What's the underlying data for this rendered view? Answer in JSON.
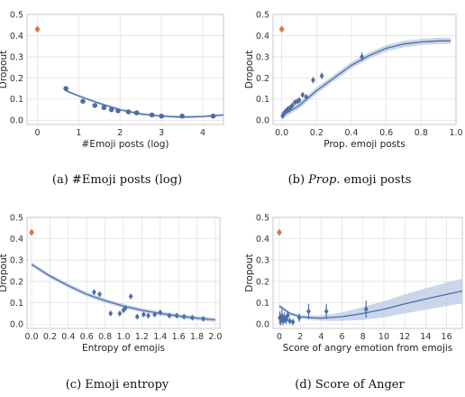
{
  "colors": {
    "points": "#4c6ea5",
    "fit": "#4c6ea5",
    "band": "#b9c8e3",
    "zero_marker": "#d9784f",
    "grid": "#e3e3e3"
  },
  "chart_data": [
    {
      "type": "scatter",
      "caption": "(a)  #Emoji posts (log)",
      "xlabel": "#Emoji posts (log)",
      "ylabel": "Dropout",
      "xlim": [
        -0.25,
        4.5
      ],
      "ylim": [
        -0.02,
        0.5
      ],
      "xticks": [
        0,
        1,
        2,
        3,
        4
      ],
      "yticks": [
        0.0,
        0.1,
        0.2,
        0.3,
        0.4,
        0.5
      ],
      "grid": true,
      "special_point": {
        "x": 0,
        "y": 0.43
      },
      "points": [
        {
          "x": 0.69,
          "y": 0.15
        },
        {
          "x": 1.1,
          "y": 0.09
        },
        {
          "x": 1.39,
          "y": 0.07
        },
        {
          "x": 1.61,
          "y": 0.06
        },
        {
          "x": 1.79,
          "y": 0.05
        },
        {
          "x": 1.95,
          "y": 0.045
        },
        {
          "x": 2.2,
          "y": 0.04
        },
        {
          "x": 2.4,
          "y": 0.035
        },
        {
          "x": 2.77,
          "y": 0.025
        },
        {
          "x": 3.0,
          "y": 0.02
        },
        {
          "x": 3.5,
          "y": 0.02
        },
        {
          "x": 4.25,
          "y": 0.02
        }
      ],
      "fit": [
        {
          "x": 0.69,
          "y": 0.14
        },
        {
          "x": 1.0,
          "y": 0.115
        },
        {
          "x": 1.5,
          "y": 0.08
        },
        {
          "x": 2.0,
          "y": 0.05
        },
        {
          "x": 2.5,
          "y": 0.03
        },
        {
          "x": 3.0,
          "y": 0.02
        },
        {
          "x": 3.5,
          "y": 0.015
        },
        {
          "x": 4.0,
          "y": 0.018
        },
        {
          "x": 4.5,
          "y": 0.025
        }
      ],
      "band_width": 0.006
    },
    {
      "type": "scatter",
      "caption": "(b)  Prop. emoji posts",
      "caption_prefix": "(b)  ",
      "caption_italic": "Prop.",
      "caption_rest": " emoji posts",
      "xlabel": "Prop. emoji posts",
      "ylabel": "Dropout",
      "xlim": [
        -0.05,
        1.0
      ],
      "ylim": [
        -0.02,
        0.5
      ],
      "xticks": [
        0.0,
        0.2,
        0.4,
        0.6,
        0.8,
        1.0
      ],
      "yticks": [
        0.0,
        0.1,
        0.2,
        0.3,
        0.4,
        0.5
      ],
      "grid": true,
      "special_point": {
        "x": 0,
        "y": 0.43
      },
      "points": [
        {
          "x": 0.005,
          "y": 0.02,
          "err": 0.008
        },
        {
          "x": 0.01,
          "y": 0.03,
          "err": 0.008
        },
        {
          "x": 0.015,
          "y": 0.035,
          "err": 0.008
        },
        {
          "x": 0.02,
          "y": 0.04,
          "err": 0.008
        },
        {
          "x": 0.03,
          "y": 0.05,
          "err": 0.008
        },
        {
          "x": 0.04,
          "y": 0.055,
          "err": 0.008
        },
        {
          "x": 0.05,
          "y": 0.06,
          "err": 0.008
        },
        {
          "x": 0.06,
          "y": 0.07,
          "err": 0.008
        },
        {
          "x": 0.075,
          "y": 0.085,
          "err": 0.008
        },
        {
          "x": 0.09,
          "y": 0.09,
          "err": 0.008
        },
        {
          "x": 0.1,
          "y": 0.095,
          "err": 0.008
        },
        {
          "x": 0.12,
          "y": 0.12,
          "err": 0.01
        },
        {
          "x": 0.14,
          "y": 0.11,
          "err": 0.01
        },
        {
          "x": 0.18,
          "y": 0.19,
          "err": 0.015
        },
        {
          "x": 0.23,
          "y": 0.21,
          "err": 0.015
        },
        {
          "x": 0.46,
          "y": 0.3,
          "err": 0.02
        }
      ],
      "fit": [
        {
          "x": 0.0,
          "y": 0.02
        },
        {
          "x": 0.1,
          "y": 0.07
        },
        {
          "x": 0.2,
          "y": 0.14
        },
        {
          "x": 0.3,
          "y": 0.2
        },
        {
          "x": 0.4,
          "y": 0.26
        },
        {
          "x": 0.5,
          "y": 0.305
        },
        {
          "x": 0.6,
          "y": 0.34
        },
        {
          "x": 0.7,
          "y": 0.36
        },
        {
          "x": 0.8,
          "y": 0.37
        },
        {
          "x": 0.9,
          "y": 0.375
        },
        {
          "x": 0.97,
          "y": 0.375
        }
      ],
      "band_width": 0.015
    },
    {
      "type": "scatter",
      "caption": "(c)  Emoji entropy",
      "xlabel": "Entropy of emojis",
      "ylabel": "Dropout",
      "xlim": [
        -0.05,
        2.05
      ],
      "ylim": [
        -0.02,
        0.5
      ],
      "xticks": [
        0.0,
        0.2,
        0.4,
        0.6,
        0.8,
        1.0,
        1.2,
        1.4,
        1.6,
        1.8,
        2.0
      ],
      "xticklabels": [
        "0.0",
        "0.2",
        "0.4",
        "0.6",
        "0.8",
        "1.0",
        "1.2",
        "1.4",
        "1.6",
        "1.8",
        "2.0"
      ],
      "yticks": [
        0.0,
        0.1,
        0.2,
        0.3,
        0.4,
        0.5
      ],
      "grid": true,
      "special_point": {
        "x": 0,
        "y": 0.43
      },
      "points": [
        {
          "x": 0.68,
          "y": 0.15,
          "err": 0.01
        },
        {
          "x": 0.74,
          "y": 0.14,
          "err": 0.01
        },
        {
          "x": 0.86,
          "y": 0.05,
          "err": 0.01
        },
        {
          "x": 0.96,
          "y": 0.05,
          "err": 0.01
        },
        {
          "x": 1.0,
          "y": 0.065,
          "err": 0.01
        },
        {
          "x": 1.02,
          "y": 0.075,
          "err": 0.01
        },
        {
          "x": 1.08,
          "y": 0.13,
          "err": 0.012
        },
        {
          "x": 1.15,
          "y": 0.035,
          "err": 0.01
        },
        {
          "x": 1.22,
          "y": 0.045,
          "err": 0.01
        },
        {
          "x": 1.27,
          "y": 0.04,
          "err": 0.01
        },
        {
          "x": 1.34,
          "y": 0.045,
          "err": 0.01
        },
        {
          "x": 1.4,
          "y": 0.055,
          "err": 0.01
        },
        {
          "x": 1.5,
          "y": 0.04,
          "err": 0.01
        },
        {
          "x": 1.58,
          "y": 0.04,
          "err": 0.01
        },
        {
          "x": 1.66,
          "y": 0.035,
          "err": 0.01
        },
        {
          "x": 1.75,
          "y": 0.03,
          "err": 0.01
        },
        {
          "x": 1.87,
          "y": 0.025,
          "err": 0.01
        }
      ],
      "fit": [
        {
          "x": 0.0,
          "y": 0.28
        },
        {
          "x": 0.2,
          "y": 0.225
        },
        {
          "x": 0.4,
          "y": 0.18
        },
        {
          "x": 0.6,
          "y": 0.14
        },
        {
          "x": 0.8,
          "y": 0.11
        },
        {
          "x": 1.0,
          "y": 0.085
        },
        {
          "x": 1.2,
          "y": 0.065
        },
        {
          "x": 1.4,
          "y": 0.05
        },
        {
          "x": 1.6,
          "y": 0.038
        },
        {
          "x": 1.8,
          "y": 0.028
        },
        {
          "x": 2.0,
          "y": 0.02
        }
      ],
      "band_width": 0.01
    },
    {
      "type": "scatter",
      "caption": "(d)  Score of Anger",
      "xlabel": "Score of angry emotion from emojis",
      "ylabel": "Dropout",
      "xlim": [
        -0.6,
        17.5
      ],
      "ylim": [
        -0.02,
        0.5
      ],
      "xticks": [
        0,
        2,
        4,
        6,
        8,
        10,
        12,
        14,
        16
      ],
      "yticks": [
        0.0,
        0.1,
        0.2,
        0.3,
        0.4,
        0.5
      ],
      "grid": true,
      "special_point": {
        "x": 0,
        "y": 0.43
      },
      "points": [
        {
          "x": 0.05,
          "y": 0.03,
          "err": 0.03
        },
        {
          "x": 0.15,
          "y": 0.02,
          "err": 0.025
        },
        {
          "x": 0.25,
          "y": 0.04,
          "err": 0.03
        },
        {
          "x": 0.35,
          "y": 0.015,
          "err": 0.02
        },
        {
          "x": 0.5,
          "y": 0.03,
          "err": 0.025
        },
        {
          "x": 0.65,
          "y": 0.02,
          "err": 0.02
        },
        {
          "x": 0.8,
          "y": 0.04,
          "err": 0.02
        },
        {
          "x": 1.0,
          "y": 0.015,
          "err": 0.015
        },
        {
          "x": 1.3,
          "y": 0.01,
          "err": 0.015
        },
        {
          "x": 1.9,
          "y": 0.03,
          "err": 0.02
        },
        {
          "x": 2.8,
          "y": 0.06,
          "err": 0.035
        },
        {
          "x": 4.5,
          "y": 0.06,
          "err": 0.035
        },
        {
          "x": 8.3,
          "y": 0.07,
          "err": 0.04
        }
      ],
      "fit": [
        {
          "x": 0.0,
          "y": 0.085
        },
        {
          "x": 1.0,
          "y": 0.05
        },
        {
          "x": 2.0,
          "y": 0.035
        },
        {
          "x": 3.0,
          "y": 0.03
        },
        {
          "x": 4.0,
          "y": 0.028
        },
        {
          "x": 6.0,
          "y": 0.035
        },
        {
          "x": 8.0,
          "y": 0.05
        },
        {
          "x": 10.0,
          "y": 0.07
        },
        {
          "x": 12.0,
          "y": 0.095
        },
        {
          "x": 14.0,
          "y": 0.118
        },
        {
          "x": 16.0,
          "y": 0.14
        },
        {
          "x": 17.5,
          "y": 0.155
        }
      ],
      "band_width": [
        0.01,
        0.008,
        0.008,
        0.01,
        0.012,
        0.02,
        0.03,
        0.038,
        0.045,
        0.05,
        0.055,
        0.058
      ]
    }
  ]
}
